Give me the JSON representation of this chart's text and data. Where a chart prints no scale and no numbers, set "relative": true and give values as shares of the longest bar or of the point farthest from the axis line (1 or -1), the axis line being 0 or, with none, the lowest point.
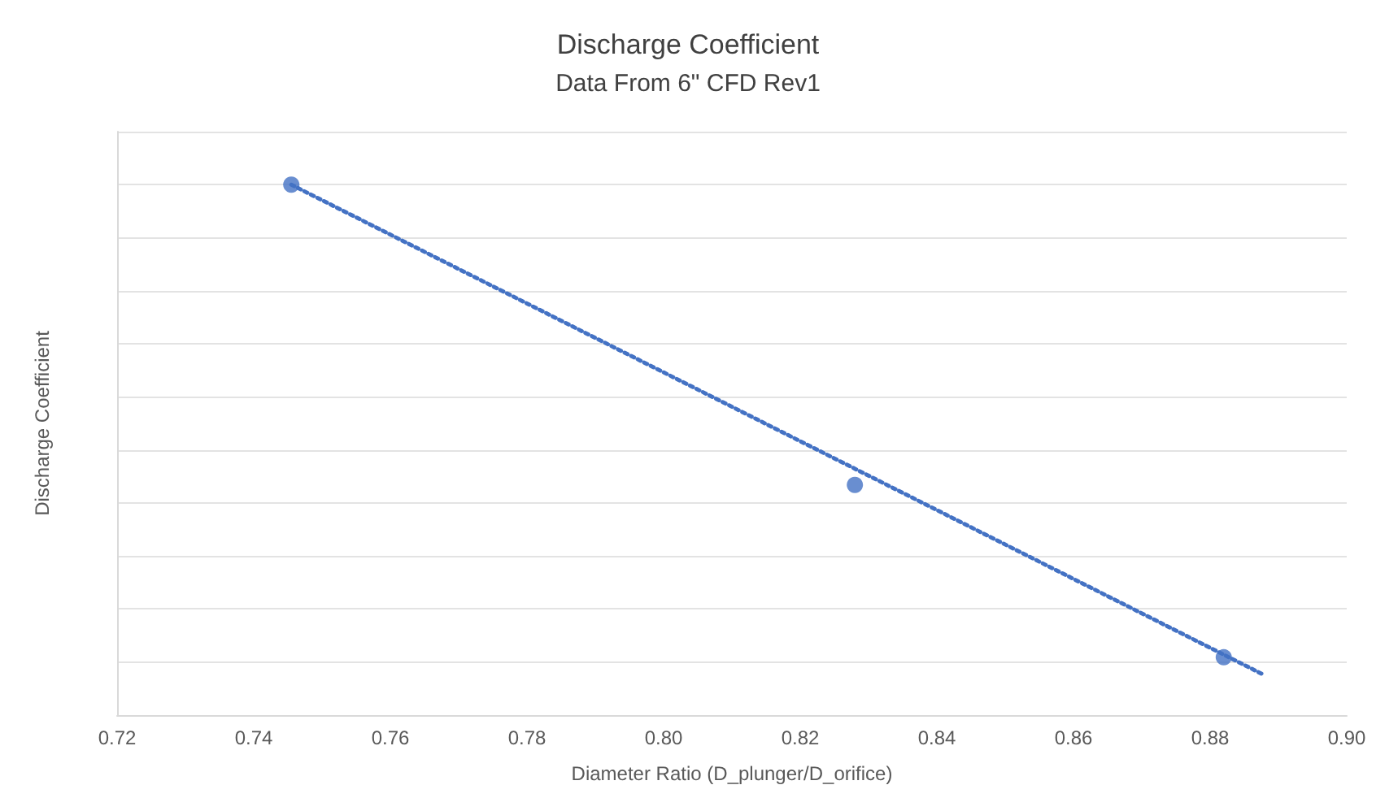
{
  "chart_data": {
    "type": "scatter",
    "title": "Discharge Coefficient",
    "subtitle": "Data From 6\" CFD Rev1",
    "xlabel": "Diameter Ratio (D_plunger/D_orifice)",
    "ylabel": "Discharge Coefficient",
    "relative": true,
    "xlim": [
      0.72,
      0.9
    ],
    "xticks": [
      {
        "value": 0.72,
        "label": "0.72"
      },
      {
        "value": 0.74,
        "label": "0.74"
      },
      {
        "value": 0.76,
        "label": "0.76"
      },
      {
        "value": 0.78,
        "label": "0.78"
      },
      {
        "value": 0.8,
        "label": "0.80"
      },
      {
        "value": 0.82,
        "label": "0.82"
      },
      {
        "value": 0.84,
        "label": "0.84"
      },
      {
        "value": 0.86,
        "label": "0.86"
      },
      {
        "value": 0.88,
        "label": "0.88"
      },
      {
        "value": 0.9,
        "label": "0.90"
      }
    ],
    "grid": "y",
    "legend": false,
    "tick_labels": "x",
    "series": [
      {
        "color": "#4472c4",
        "marker": "circle",
        "x": [
          0.7455,
          0.828,
          0.882
        ],
        "values": [
          1,
          0.434,
          0.109
        ]
      },
      {
        "type": "line",
        "color": "#4472c4",
        "marker": "none",
        "line_style": "dotted",
        "x": [
          0.7455,
          0.888
        ],
        "values": [
          1,
          0.075
        ]
      }
    ]
  }
}
